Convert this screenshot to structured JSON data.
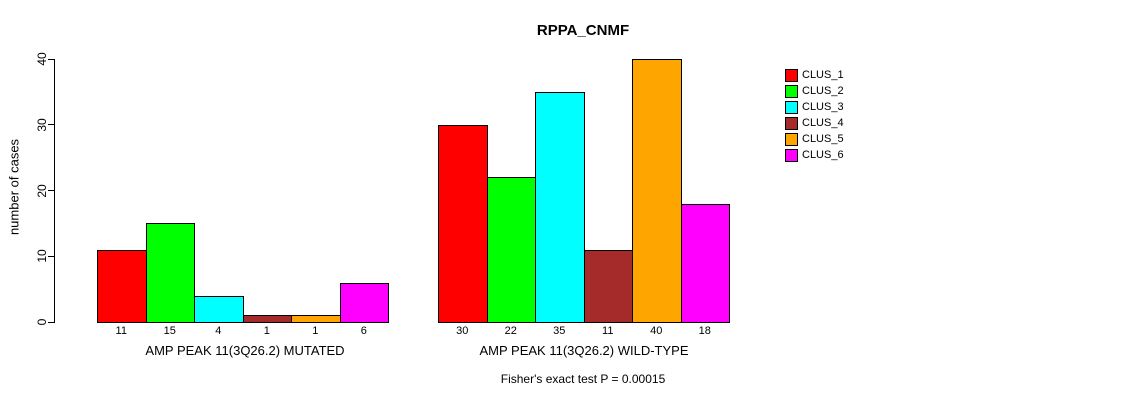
{
  "title": "RPPA_CNMF",
  "chart_data": {
    "type": "bar",
    "title": "RPPA_CNMF",
    "xlabel": "",
    "ylabel": "number of cases",
    "ylim": [
      0,
      40
    ],
    "yticks": [
      0,
      10,
      20,
      30,
      40
    ],
    "grid": false,
    "legend_position": "right",
    "clusters": [
      {
        "label": "CLUS_1",
        "color": "#FF0000"
      },
      {
        "label": "CLUS_2",
        "color": "#00FF00"
      },
      {
        "label": "CLUS_3",
        "color": "#00FFFF"
      },
      {
        "label": "CLUS_4",
        "color": "#A52A2A"
      },
      {
        "label": "CLUS_5",
        "color": "#FFA500"
      },
      {
        "label": "CLUS_6",
        "color": "#FF00FF"
      }
    ],
    "groups": [
      {
        "label": "AMP PEAK 11(3Q26.2) MUTATED",
        "values": [
          11,
          15,
          4,
          1,
          1,
          6
        ]
      },
      {
        "label": "AMP PEAK 11(3Q26.2) WILD-TYPE",
        "values": [
          30,
          22,
          35,
          11,
          40,
          18
        ]
      }
    ],
    "annotation": "Fisher's exact test P = 0.00015"
  }
}
